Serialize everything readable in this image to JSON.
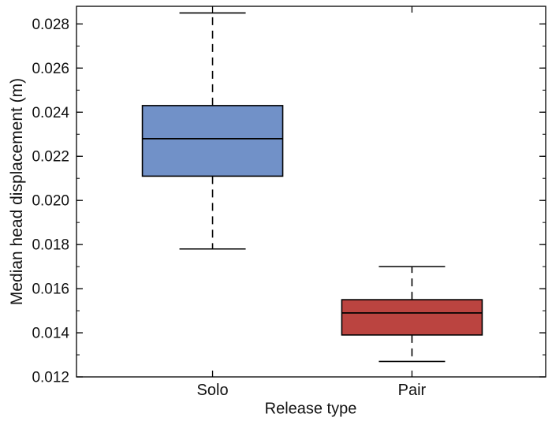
{
  "figure": {
    "background": "#ffffff",
    "axis_color": "#000000",
    "text_color": "#111111"
  },
  "chart_data": {
    "type": "boxplot",
    "title": "",
    "xlabel": "Release type",
    "ylabel": "Median head displacement (m)",
    "categories": [
      "Solo",
      "Pair"
    ],
    "series": [
      {
        "name": "Solo",
        "whisker_low": 0.0178,
        "q1": 0.0211,
        "median": 0.0228,
        "q3": 0.0243,
        "whisker_high": 0.0285,
        "fill_color": "#7191c8"
      },
      {
        "name": "Pair",
        "whisker_low": 0.0127,
        "q1": 0.0139,
        "median": 0.0149,
        "q3": 0.0155,
        "whisker_high": 0.017,
        "fill_color": "#bb4440"
      }
    ],
    "ylim": [
      0.012,
      0.0288
    ],
    "y_major_ticks": [
      0.012,
      0.014,
      0.016,
      0.018,
      0.02,
      0.022,
      0.024,
      0.026,
      0.028
    ],
    "y_tick_labels": [
      "0.012",
      "0.014",
      "0.016",
      "0.018",
      "0.020",
      "0.022",
      "0.024",
      "0.026",
      "0.028"
    ],
    "y_minor_step": 0.001,
    "grid": false,
    "legend": "none",
    "box_edge_color": "#000000",
    "whisker_style": "dashed"
  }
}
